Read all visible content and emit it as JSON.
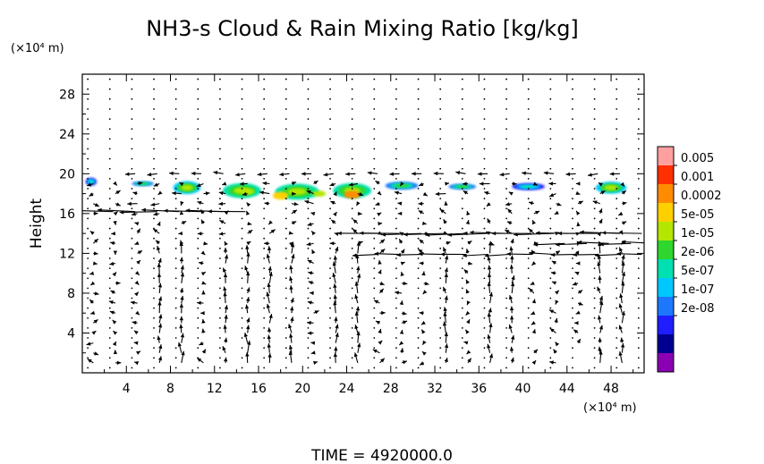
{
  "chart_data": {
    "type": "heatmap",
    "title": "NH3-s Cloud & Rain Mixing Ratio [kg/kg]",
    "ylabel": "Height",
    "y_unit": "(×10⁴ m)",
    "x_unit": "(×10⁴ m)",
    "xlim": [
      0,
      51
    ],
    "ylim": [
      0,
      30
    ],
    "x_ticks": [
      "4",
      "8",
      "12",
      "16",
      "20",
      "24",
      "28",
      "32",
      "36",
      "40",
      "44",
      "48"
    ],
    "y_ticks": [
      "4",
      "8",
      "12",
      "16",
      "20",
      "24",
      "28"
    ],
    "colorbar": {
      "labels": [
        "0.005",
        "0.001",
        "0.0002",
        "5e-05",
        "1e-05",
        "2e-06",
        "5e-07",
        "1e-07",
        "2e-08"
      ],
      "colors": [
        "#ffa0a0",
        "#ff3000",
        "#ff8c00",
        "#ffd000",
        "#b4e600",
        "#2ed62e",
        "#00e0b0",
        "#00c8ff",
        "#1e78ff",
        "#1e1eff",
        "#000090",
        "#8c00b4"
      ]
    },
    "cloud_band": {
      "y_range": [
        16.5,
        19.8
      ],
      "x_extent": [
        0,
        51
      ],
      "peak_region": {
        "x_range": [
          17,
          26
        ],
        "level": "0.0002"
      },
      "blobs": [
        {
          "x": 0.8,
          "y": 19.2,
          "w": 1.0,
          "h": 0.8,
          "level": 9
        },
        {
          "x": 5.5,
          "y": 19.0,
          "w": 2.0,
          "h": 0.5,
          "level": 8
        },
        {
          "x": 9.5,
          "y": 18.6,
          "w": 2.5,
          "h": 1.3,
          "level": 7
        },
        {
          "x": 14.5,
          "y": 18.3,
          "w": 3.5,
          "h": 1.5,
          "level": 6
        },
        {
          "x": 19.5,
          "y": 18.2,
          "w": 4.0,
          "h": 1.6,
          "level": 6
        },
        {
          "x": 24.5,
          "y": 18.3,
          "w": 3.5,
          "h": 1.5,
          "level": 6
        },
        {
          "x": 29.0,
          "y": 18.8,
          "w": 3.0,
          "h": 0.8,
          "level": 8
        },
        {
          "x": 34.5,
          "y": 18.7,
          "w": 2.5,
          "h": 0.6,
          "level": 8
        },
        {
          "x": 40.5,
          "y": 18.7,
          "w": 3.0,
          "h": 0.7,
          "level": 9
        },
        {
          "x": 48.0,
          "y": 18.6,
          "w": 2.8,
          "h": 1.2,
          "level": 7
        }
      ],
      "hotspots": [
        {
          "x": 18.0,
          "y": 17.8,
          "w": 1.4,
          "h": 0.8,
          "level": 3
        },
        {
          "x": 24.5,
          "y": 17.9,
          "w": 1.5,
          "h": 0.8,
          "level": 2
        },
        {
          "x": 21.5,
          "y": 18.0,
          "w": 1.2,
          "h": 0.6,
          "level": 4
        },
        {
          "x": 15.0,
          "y": 18.2,
          "w": 1.2,
          "h": 0.6,
          "level": 4
        }
      ]
    },
    "wind_vectors": {
      "jets": [
        {
          "y": 16.2,
          "x_range": [
            0,
            14
          ],
          "direction": "west",
          "strength": 3.0
        },
        {
          "y": 14.0,
          "x_range": [
            24,
            51
          ],
          "direction": "west",
          "strength": 3.2
        },
        {
          "y": 13.0,
          "x_range": [
            41,
            51
          ],
          "direction": "west",
          "strength": 2.5
        },
        {
          "y": 11.9,
          "x_range": [
            24,
            51
          ],
          "direction": "west",
          "strength": 2.0
        },
        {
          "y": 20.0,
          "x_range": [
            2,
            48
          ],
          "direction": "west",
          "strength": 0.8
        }
      ],
      "upward_columns_x": [
        8,
        14,
        18,
        24,
        33,
        38,
        48
      ]
    },
    "footer": "TIME = 4920000.0"
  }
}
